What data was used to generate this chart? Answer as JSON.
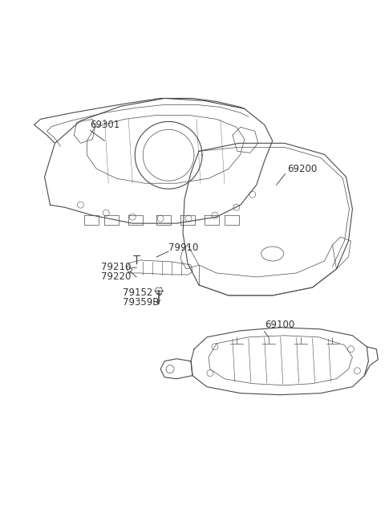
{
  "background_color": "#ffffff",
  "line_color": "#4a4a4a",
  "label_color": "#333333",
  "label_fontsize": 8.5,
  "fig_width": 4.8,
  "fig_height": 6.55,
  "dpi": 100
}
